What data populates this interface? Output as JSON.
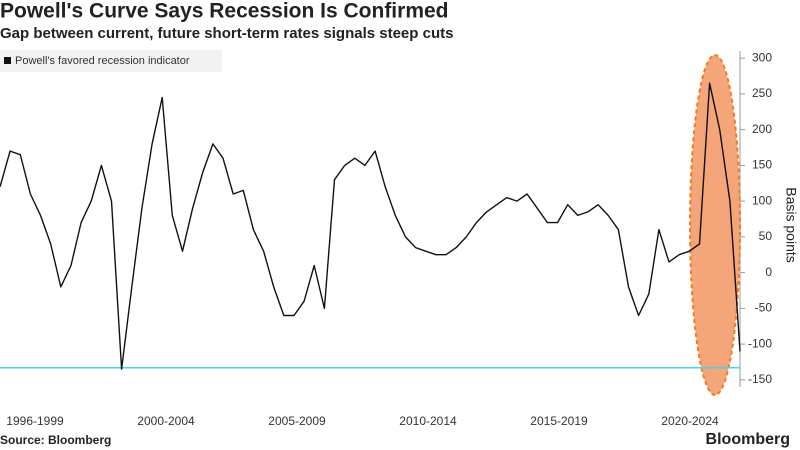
{
  "chart_data": {
    "type": "line",
    "title": "Powell's Curve Says Recession Is Confirmed",
    "subtitle": "Gap between current, future short-term rates signals steep cuts",
    "y_axis_label": "Basis points",
    "x_labels": [
      "1996-1999",
      "2000-2004",
      "2005-2009",
      "2010-2014",
      "2015-2019",
      "2020-2024"
    ],
    "series": [
      {
        "name": "Powell's favored recession indicator",
        "color": "#111111",
        "values": [
          120,
          170,
          165,
          110,
          80,
          40,
          -20,
          10,
          70,
          100,
          150,
          100,
          -135,
          -20,
          90,
          180,
          245,
          80,
          30,
          90,
          140,
          180,
          160,
          110,
          115,
          60,
          30,
          -20,
          -60,
          -60,
          -40,
          10,
          -50,
          130,
          150,
          160,
          150,
          170,
          120,
          80,
          50,
          35,
          30,
          25,
          25,
          35,
          50,
          70,
          85,
          95,
          105,
          100,
          110,
          90,
          70,
          70,
          95,
          80,
          85,
          95,
          80,
          60,
          -20,
          -60,
          -30,
          60,
          15,
          25,
          30,
          40,
          265,
          200,
          100,
          -110
        ]
      }
    ],
    "reference_line": {
      "value": -133,
      "color": "#4dd0e1"
    },
    "ylim": [
      -160,
      310
    ],
    "yticks": [
      -150,
      -100,
      -50,
      0,
      50,
      100,
      150,
      200,
      250,
      300
    ],
    "legend": "top-left",
    "source": "Source: Bloomberg",
    "brand": "Bloomberg"
  }
}
